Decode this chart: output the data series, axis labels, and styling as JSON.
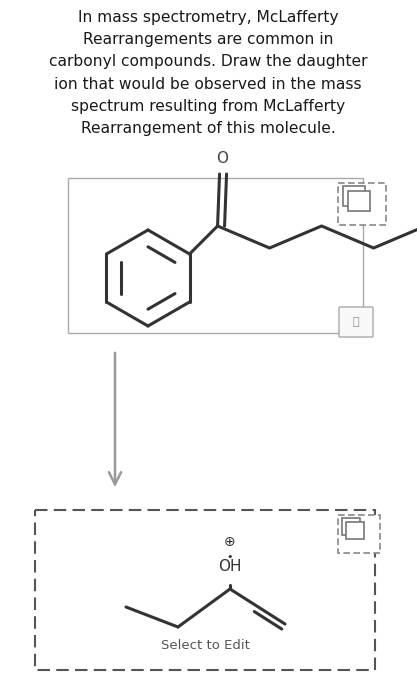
{
  "title_text": "In mass spectrometry, McLafferty\nRearrangements are common in\ncarbonyl compounds. Draw the daughter\nion that would be observed in the mass\nspectrum resulting from McLafferty\nRearrangement of this molecule.",
  "bg_color": "#ffffff",
  "text_color": "#1a1a1a",
  "font_size_title": 11.2,
  "select_to_edit": "Select to Edit"
}
